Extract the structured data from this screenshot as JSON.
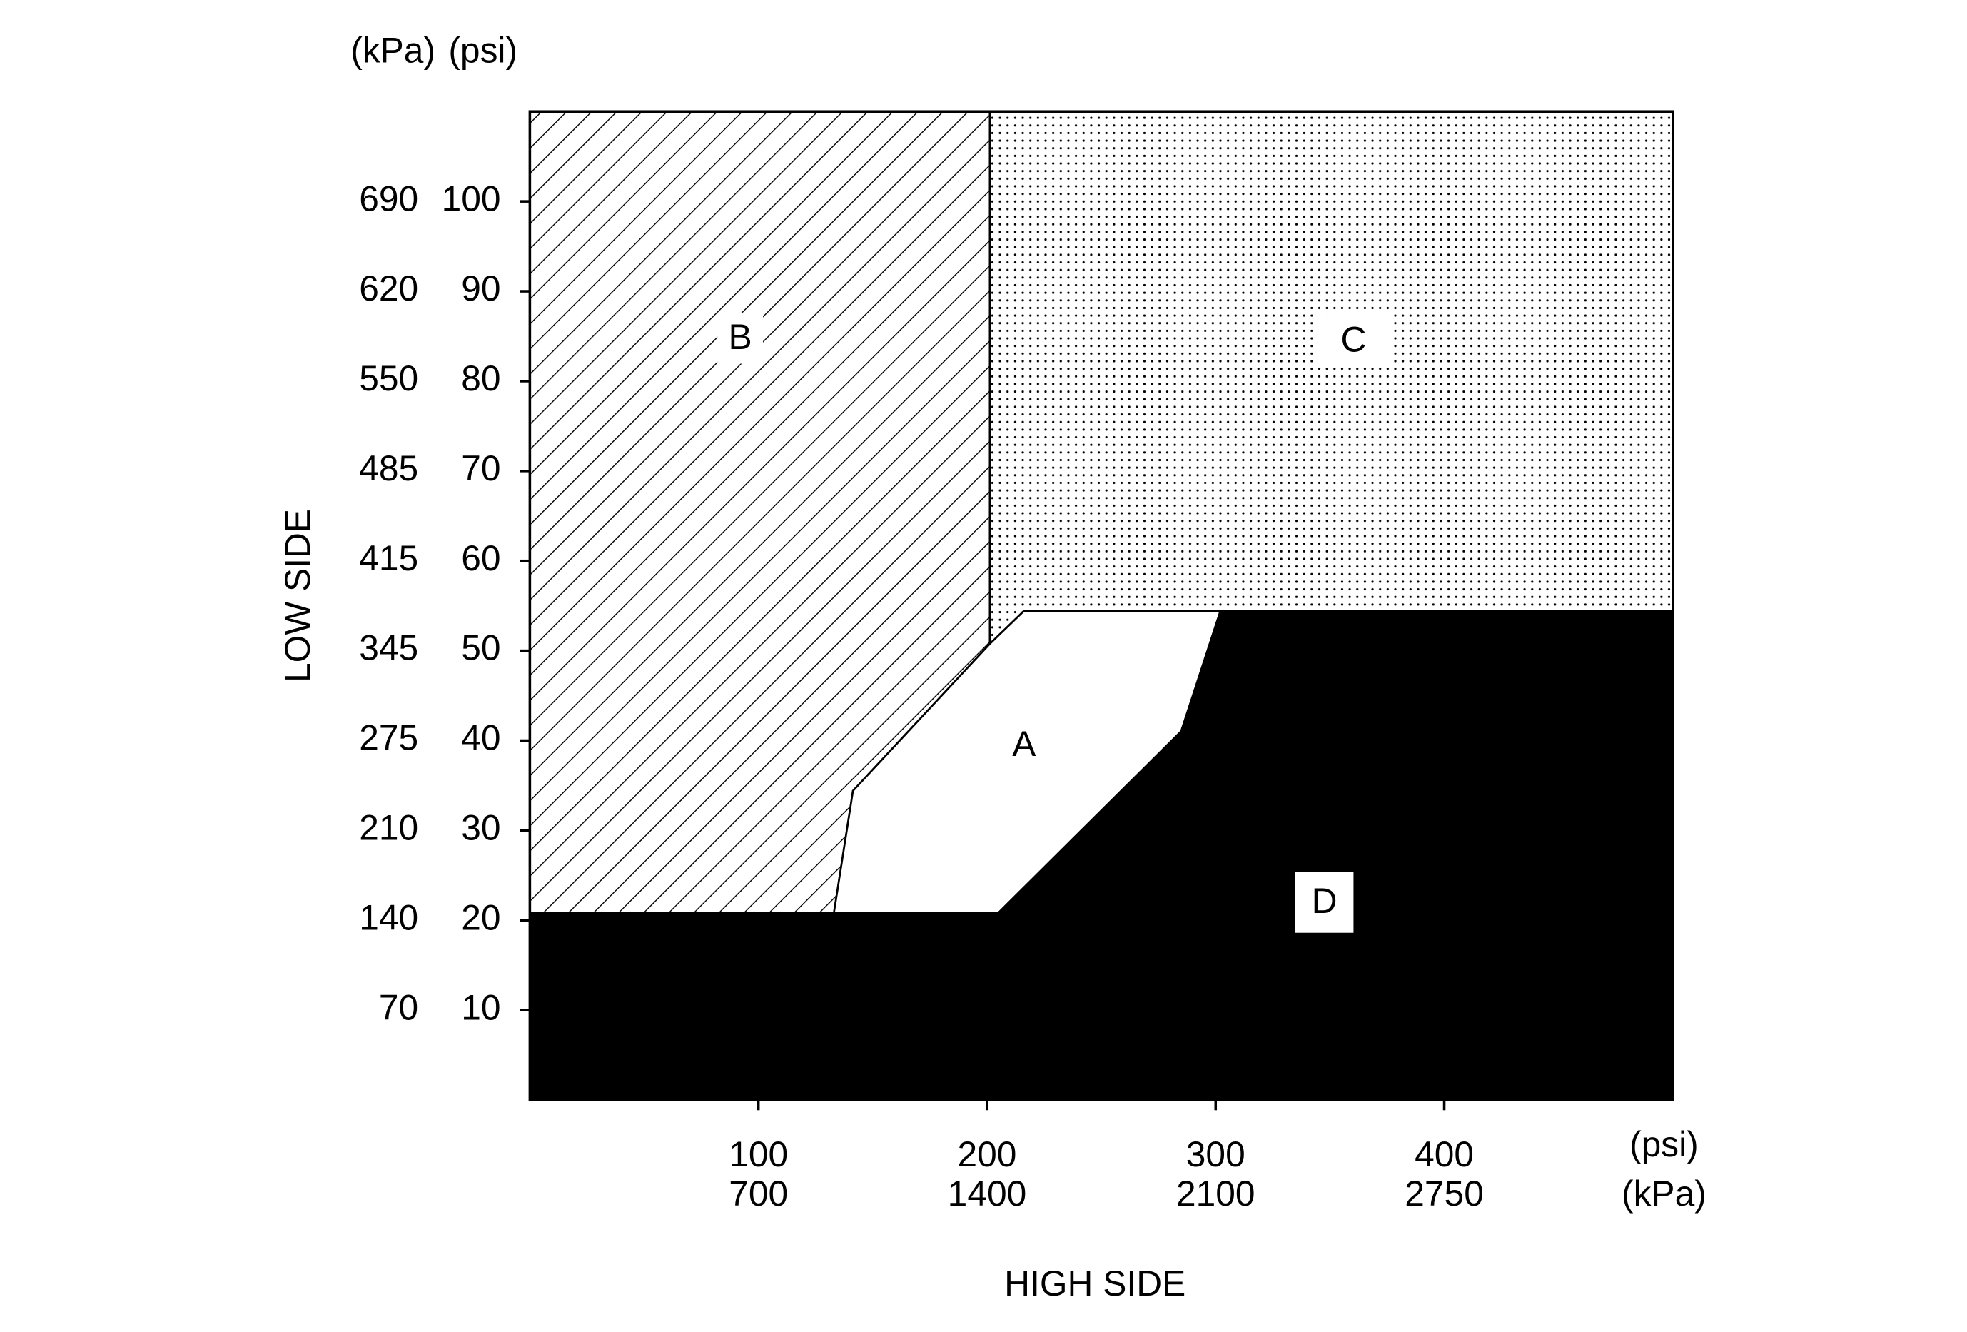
{
  "chart_data": {
    "type": "region",
    "x_label": "HIGH SIDE",
    "y_label": "LOW SIDE",
    "x_units": [
      "(psi)",
      "(kPa)"
    ],
    "y_units": [
      "(kPa)",
      "(psi)"
    ],
    "xlim": [
      0,
      500
    ],
    "ylim": [
      0,
      110
    ],
    "xticks": [
      100,
      200,
      300,
      400
    ],
    "xticks_kpa": [
      700,
      1400,
      2100,
      2750
    ],
    "yticks": [
      10,
      20,
      30,
      40,
      50,
      60,
      70,
      80,
      90,
      100
    ],
    "yticks_kpa": [
      70,
      140,
      210,
      275,
      345,
      415,
      485,
      550,
      620,
      690
    ],
    "regions": [
      "A",
      "B",
      "C",
      "D"
    ]
  }
}
